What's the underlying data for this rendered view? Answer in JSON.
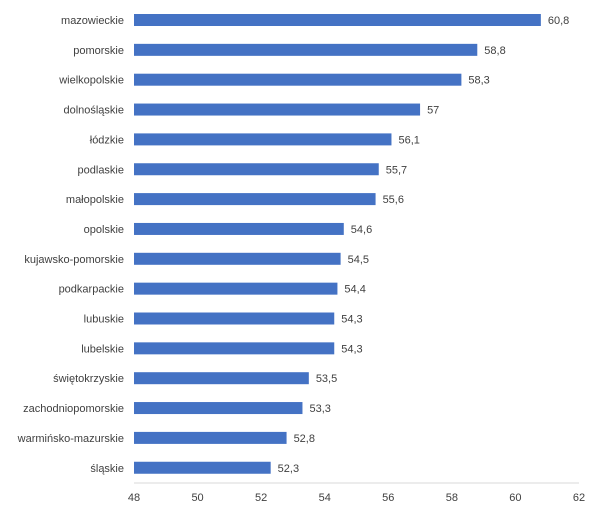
{
  "chart_data": {
    "type": "bar",
    "orientation": "horizontal",
    "categories": [
      "mazowieckie",
      "pomorskie",
      "wielkopolskie",
      "dolnośląskie",
      "łódzkie",
      "podlaskie",
      "małopolskie",
      "opolskie",
      "kujawsko-pomorskie",
      "podkarpackie",
      "lubuskie",
      "lubelskie",
      "świętokrzyskie",
      "zachodniopomorskie",
      "warmińsko-mazurskie",
      "śląskie"
    ],
    "values": [
      60.8,
      58.8,
      58.3,
      57,
      56.1,
      55.7,
      55.6,
      54.6,
      54.5,
      54.4,
      54.3,
      54.3,
      53.5,
      53.3,
      52.8,
      52.3
    ],
    "value_labels": [
      "60,8",
      "58,8",
      "58,3",
      "57",
      "56,1",
      "55,7",
      "55,6",
      "54,6",
      "54,5",
      "54,4",
      "54,3",
      "54,3",
      "53,5",
      "53,3",
      "52,8",
      "52,3"
    ],
    "xlim": [
      48,
      62
    ],
    "x_ticks": [
      "48",
      "50",
      "52",
      "54",
      "56",
      "58",
      "60",
      "62"
    ],
    "x_tick_values": [
      48,
      50,
      52,
      54,
      56,
      58,
      60,
      62
    ],
    "title": "",
    "xlabel": "",
    "ylabel": "",
    "bar_color": "#4472c4",
    "grid": false,
    "legend": "none"
  }
}
